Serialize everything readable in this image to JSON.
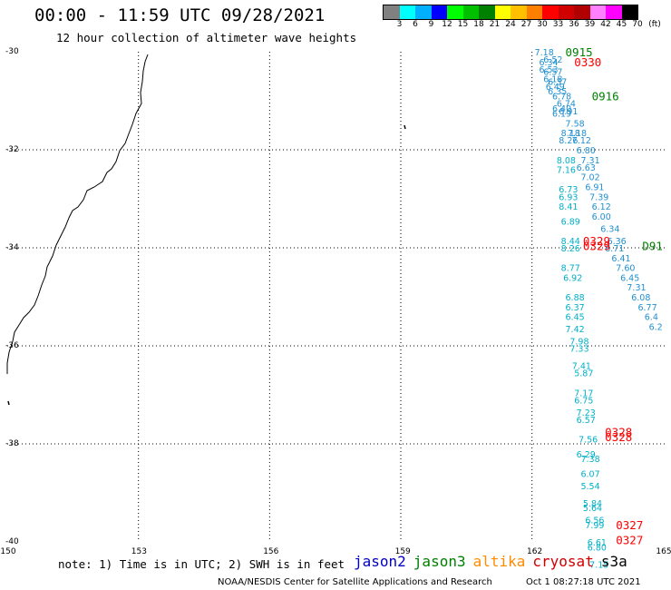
{
  "header": {
    "title": "00:00 - 11:59 UTC 09/28/2021",
    "subtitle": "12 hour collection of altimeter wave heights"
  },
  "colorbar": {
    "unit": "(ft)",
    "labels": [
      "3",
      "6",
      "9",
      "12",
      "15",
      "18",
      "21",
      "24",
      "27",
      "30",
      "33",
      "36",
      "39",
      "42",
      "45",
      "70"
    ],
    "colors": [
      "#808080",
      "#00ffff",
      "#00b0ff",
      "#0000ff",
      "#00ff00",
      "#00c000",
      "#008000",
      "#ffff00",
      "#ffc000",
      "#ff8000",
      "#ff0000",
      "#d00000",
      "#b00000",
      "#ff80ff",
      "#ff00ff",
      "#000000"
    ]
  },
  "map": {
    "lat_labels": [
      "-30",
      "-32",
      "-34",
      "-36",
      "-38",
      "-40"
    ],
    "lon_labels": [
      "150",
      "153",
      "156",
      "159",
      "162",
      "165"
    ]
  },
  "tracks": {
    "colors": {
      "jason3": "#008000",
      "cryosat": "#ff0000",
      "s3a": "#00b0c8",
      "altika": "#2090d0"
    },
    "pass_labels": [
      {
        "text": "0915",
        "sat": "jason3",
        "lat": -30.0,
        "lon": 162.7
      },
      {
        "text": "0330",
        "sat": "cryosat",
        "lat": -30.2,
        "lon": 162.9
      },
      {
        "text": "0916",
        "sat": "jason3",
        "lat": -30.9,
        "lon": 163.3
      },
      {
        "text": "0329",
        "sat": "cryosat",
        "lat": -33.85,
        "lon": 163.1
      },
      {
        "text": "0329",
        "sat": "cryosat",
        "lat": -33.95,
        "lon": 163.1
      },
      {
        "text": "D91",
        "sat": "jason3",
        "lat": -33.95,
        "lon": 164.45
      },
      {
        "text": "0328",
        "sat": "cryosat",
        "lat": -37.75,
        "lon": 163.6
      },
      {
        "text": "0328",
        "sat": "cryosat",
        "lat": -37.85,
        "lon": 163.6
      },
      {
        "text": "0327",
        "sat": "cryosat",
        "lat": -39.65,
        "lon": 163.85
      },
      {
        "text": "0327",
        "sat": "cryosat",
        "lat": -39.95,
        "lon": 163.85
      }
    ],
    "track_a": [
      {
        "v": "7.18",
        "lat": -30.0,
        "lon": 162.0
      },
      {
        "v": "6.52",
        "lat": -30.15,
        "lon": 162.2
      },
      {
        "v": "6.34",
        "lat": -30.2,
        "lon": 162.1
      },
      {
        "v": "6.53",
        "lat": -30.35,
        "lon": 162.1
      },
      {
        "v": "6.57",
        "lat": -30.4,
        "lon": 162.2
      },
      {
        "v": "6.18",
        "lat": -30.55,
        "lon": 162.2
      },
      {
        "v": "6.37",
        "lat": -30.6,
        "lon": 162.3
      },
      {
        "v": "6.49",
        "lat": -30.7,
        "lon": 162.25
      },
      {
        "v": "6.35",
        "lat": -30.8,
        "lon": 162.3
      },
      {
        "v": "6.78",
        "lat": -30.9,
        "lon": 162.4
      },
      {
        "v": "6.74",
        "lat": -31.05,
        "lon": 162.5
      },
      {
        "v": "6.40",
        "lat": -31.15,
        "lon": 162.4
      },
      {
        "v": "6.91",
        "lat": -31.2,
        "lon": 162.55
      },
      {
        "v": "6.19",
        "lat": -31.25,
        "lon": 162.4
      },
      {
        "v": "7.58",
        "lat": -31.45,
        "lon": 162.7
      },
      {
        "v": "8.18",
        "lat": -31.65,
        "lon": 162.6
      },
      {
        "v": "7.18",
        "lat": -31.65,
        "lon": 162.75
      },
      {
        "v": "8.26",
        "lat": -31.8,
        "lon": 162.55
      },
      {
        "v": "7.12",
        "lat": -31.8,
        "lon": 162.85
      },
      {
        "v": "6.80",
        "lat": -32.0,
        "lon": 162.95
      },
      {
        "v": "7.31",
        "lat": -32.2,
        "lon": 163.05
      },
      {
        "v": "6.63",
        "lat": -32.35,
        "lon": 162.95
      },
      {
        "v": "7.02",
        "lat": -32.55,
        "lon": 163.05
      },
      {
        "v": "6.91",
        "lat": -32.75,
        "lon": 163.15
      },
      {
        "v": "7.39",
        "lat": -32.95,
        "lon": 163.25
      },
      {
        "v": "6.12",
        "lat": -33.15,
        "lon": 163.3
      },
      {
        "v": "6.00",
        "lat": -33.35,
        "lon": 163.3
      },
      {
        "v": "6.34",
        "lat": -33.6,
        "lon": 163.5
      },
      {
        "v": "6.36",
        "lat": -33.85,
        "lon": 163.65
      },
      {
        "v": "6.71",
        "lat": -34.0,
        "lon": 163.6
      },
      {
        "v": "6.41",
        "lat": -34.2,
        "lon": 163.75
      },
      {
        "v": "7.60",
        "lat": -34.4,
        "lon": 163.85
      },
      {
        "v": "6.45",
        "lat": -34.6,
        "lon": 163.95
      },
      {
        "v": "7.31",
        "lat": -34.8,
        "lon": 164.1
      },
      {
        "v": "6.08",
        "lat": -35.0,
        "lon": 164.2
      },
      {
        "v": "6.77",
        "lat": -35.2,
        "lon": 164.35
      },
      {
        "v": "6.4",
        "lat": -35.4,
        "lon": 164.5
      },
      {
        "v": "6.2",
        "lat": -35.6,
        "lon": 164.6
      }
    ],
    "track_b": [
      {
        "v": "8.08",
        "lat": -32.2,
        "lon": 162.5
      },
      {
        "v": "7.16",
        "lat": -32.4,
        "lon": 162.5
      },
      {
        "v": "6.73",
        "lat": -32.8,
        "lon": 162.55
      },
      {
        "v": "6.93",
        "lat": -32.95,
        "lon": 162.55
      },
      {
        "v": "8.41",
        "lat": -33.15,
        "lon": 162.55
      },
      {
        "v": "6.89",
        "lat": -33.45,
        "lon": 162.6
      },
      {
        "v": "8.44",
        "lat": -33.85,
        "lon": 162.6
      },
      {
        "v": "8.26",
        "lat": -34.0,
        "lon": 162.6
      },
      {
        "v": "8.77",
        "lat": -34.4,
        "lon": 162.6
      },
      {
        "v": "6.92",
        "lat": -34.6,
        "lon": 162.65
      },
      {
        "v": "6.88",
        "lat": -35.0,
        "lon": 162.7
      },
      {
        "v": "6.37",
        "lat": -35.2,
        "lon": 162.7
      },
      {
        "v": "6.45",
        "lat": -35.4,
        "lon": 162.7
      },
      {
        "v": "7.42",
        "lat": -35.65,
        "lon": 162.7
      },
      {
        "v": "7.98",
        "lat": -35.9,
        "lon": 162.8
      },
      {
        "v": "7.33",
        "lat": -36.05,
        "lon": 162.8
      },
      {
        "v": "7.41",
        "lat": -36.4,
        "lon": 162.85
      },
      {
        "v": "5.87",
        "lat": -36.55,
        "lon": 162.9
      },
      {
        "v": "7.17",
        "lat": -36.95,
        "lon": 162.9
      },
      {
        "v": "6.75",
        "lat": -37.1,
        "lon": 162.9
      },
      {
        "v": "7.23",
        "lat": -37.35,
        "lon": 162.95
      },
      {
        "v": "6.57",
        "lat": -37.5,
        "lon": 162.95
      },
      {
        "v": "7.56",
        "lat": -37.9,
        "lon": 163.0
      },
      {
        "v": "6.29",
        "lat": -38.2,
        "lon": 162.95
      },
      {
        "v": "7.38",
        "lat": -38.3,
        "lon": 163.05
      },
      {
        "v": "6.07",
        "lat": -38.6,
        "lon": 163.05
      },
      {
        "v": "5.54",
        "lat": -38.85,
        "lon": 163.05
      },
      {
        "v": "5.84",
        "lat": -39.2,
        "lon": 163.1
      },
      {
        "v": "5.64",
        "lat": -39.3,
        "lon": 163.1
      },
      {
        "v": "6.56",
        "lat": -39.55,
        "lon": 163.15
      },
      {
        "v": "7.99",
        "lat": -39.65,
        "lon": 163.15
      },
      {
        "v": "6.61",
        "lat": -40.0,
        "lon": 163.2
      },
      {
        "v": "6.80",
        "lat": -40.1,
        "lon": 163.2
      },
      {
        "v": "7.15",
        "lat": -40.45,
        "lon": 163.25
      }
    ]
  },
  "footer": {
    "note": "note: 1) Time is in UTC; 2) SWH is in feet",
    "legend": [
      {
        "name": "jason2",
        "color": "#0000c0"
      },
      {
        "name": "jason3",
        "color": "#008000"
      },
      {
        "name": "altika",
        "color": "#ff8c00"
      },
      {
        "name": "cryosat",
        "color": "#d00000"
      },
      {
        "name": "s3a",
        "color": "#000000"
      }
    ],
    "source": "NOAA/NESDIS Center for Satellite Applications and Research",
    "timestamp": "Oct  1 08:27:18 UTC 2021"
  }
}
